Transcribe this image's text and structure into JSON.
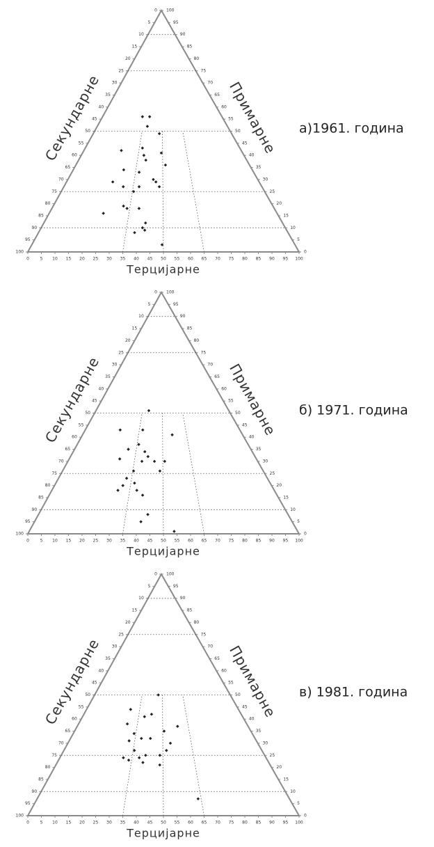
{
  "chart_data": [
    {
      "type": "ternary",
      "title": "а)1961. година",
      "left_label": "Секундарне",
      "right_label": "Примарне",
      "bottom_label": "Терцијарне",
      "ticks": [
        0,
        5,
        10,
        15,
        20,
        25,
        30,
        35,
        40,
        45,
        50,
        55,
        60,
        65,
        70,
        75,
        80,
        85,
        90,
        95,
        100
      ],
      "grid_primary": [
        10,
        25,
        50,
        75,
        90
      ],
      "grid_tertiary": [
        35,
        50,
        65
      ],
      "tertiary": [
        33.4,
        39.4,
        38.5,
        47.8,
        23.8,
        37,
        38.5,
        49.2,
        40,
        51.6,
        28.2,
        37,
        24,
        45,
        38,
        46.4,
        30,
        48.2,
        35.6,
        33.8,
        23.8,
        32,
        39.2,
        42.6,
        41.5,
        42.5,
        38.5,
        49.5
      ],
      "primary": [
        56,
        56,
        52,
        49,
        42,
        43,
        40,
        41,
        38,
        36,
        34,
        33,
        29,
        30,
        27,
        29,
        27,
        27,
        25,
        18,
        16,
        19,
        18,
        12,
        10,
        9,
        8,
        3
      ]
    },
    {
      "type": "ternary",
      "title": "б) 1971. година",
      "left_label": "Секундарне",
      "right_label": "Примарне",
      "bottom_label": "Терцијарне",
      "ticks": [
        0,
        5,
        10,
        15,
        20,
        25,
        30,
        35,
        40,
        45,
        50,
        55,
        60,
        65,
        70,
        75,
        80,
        85,
        90,
        95,
        100
      ],
      "grid_primary": [
        10,
        25,
        50,
        75,
        90
      ],
      "grid_tertiary": [
        35,
        50,
        65
      ],
      "tertiary": [
        39.8,
        22.6,
        37.2,
        56,
        36,
        30.5,
        40,
        42,
        27,
        45.6,
        39,
        51,
        48.5,
        35.4,
        32.6,
        31.5,
        36.7,
        38.2,
        29.7,
        41,
        43.8,
        41.3,
        54
      ],
      "primary": [
        51,
        43,
        43,
        41,
        37,
        35,
        34,
        32,
        31,
        30,
        30,
        30,
        26,
        26,
        23,
        20,
        21,
        18,
        18,
        16,
        8,
        5,
        1
      ]
    },
    {
      "type": "ternary",
      "title": "в) 1981. година",
      "left_label": "Секундарне",
      "right_label": "Примарне",
      "bottom_label": "Терцијарне",
      "ticks": [
        0,
        5,
        10,
        15,
        20,
        25,
        30,
        35,
        40,
        45,
        50,
        55,
        60,
        65,
        70,
        75,
        80,
        85,
        90,
        95,
        100
      ],
      "grid_primary": [
        10,
        25,
        50,
        75,
        90
      ],
      "grid_tertiary": [
        35,
        50,
        65
      ],
      "tertiary": [
        47,
        29,
        43,
        38.7,
        58.7,
        29,
        50.8,
        34,
        38.4,
        43.3,
        32,
        54,
        51.8,
        35.6,
        41.5,
        48.5,
        30.8,
        38.5,
        33.6,
        40.5,
        48.5,
        63.8
      ],
      "primary": [
        50,
        44,
        42,
        41,
        37,
        38,
        35,
        34,
        32,
        32,
        31,
        30,
        27,
        27,
        25,
        25,
        24,
        24,
        23,
        22,
        21,
        7
      ]
    }
  ]
}
